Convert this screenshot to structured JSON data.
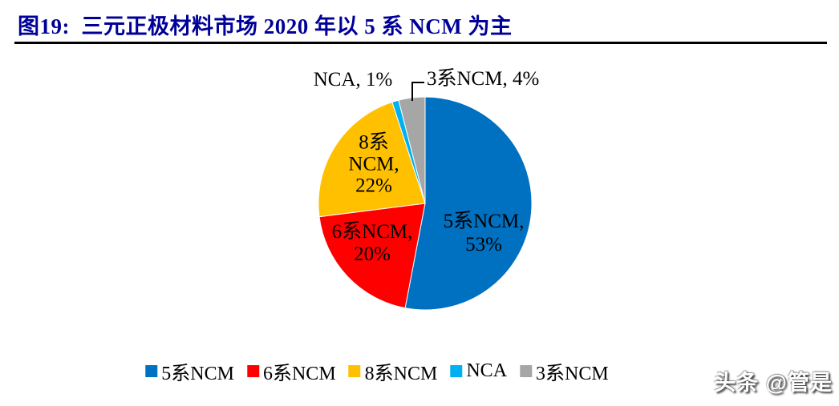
{
  "header": {
    "title": "图19:  三元正极材料市场 2020 年以 5 系 NCM 为主",
    "title_color": "#000099"
  },
  "chart_data": {
    "type": "pie",
    "title": "三元正极材料市场 2020 年以 5 系 NCM 为主",
    "categories": [
      "5系NCM",
      "6系NCM",
      "8系NCM",
      "NCA",
      "3系NCM"
    ],
    "values": [
      53,
      20,
      22,
      1,
      4
    ],
    "unit": "%",
    "colors": [
      "#0070C0",
      "#FF0000",
      "#FFC000",
      "#00B0F0",
      "#A6A6A6"
    ],
    "start_angle_deg": 0,
    "direction": "clockwise",
    "legend_position": "bottom",
    "data_labels": {
      "slice_5ncm": [
        "5系NCM,",
        "53%"
      ],
      "slice_6ncm": [
        "6系NCM,",
        "20%"
      ],
      "slice_8ncm": [
        "8系",
        "NCM,",
        "22%"
      ],
      "slice_nca": "NCA, 1%",
      "slice_3ncm": "3系NCM, 4%"
    }
  },
  "watermark": {
    "text": "头条 @管是"
  }
}
